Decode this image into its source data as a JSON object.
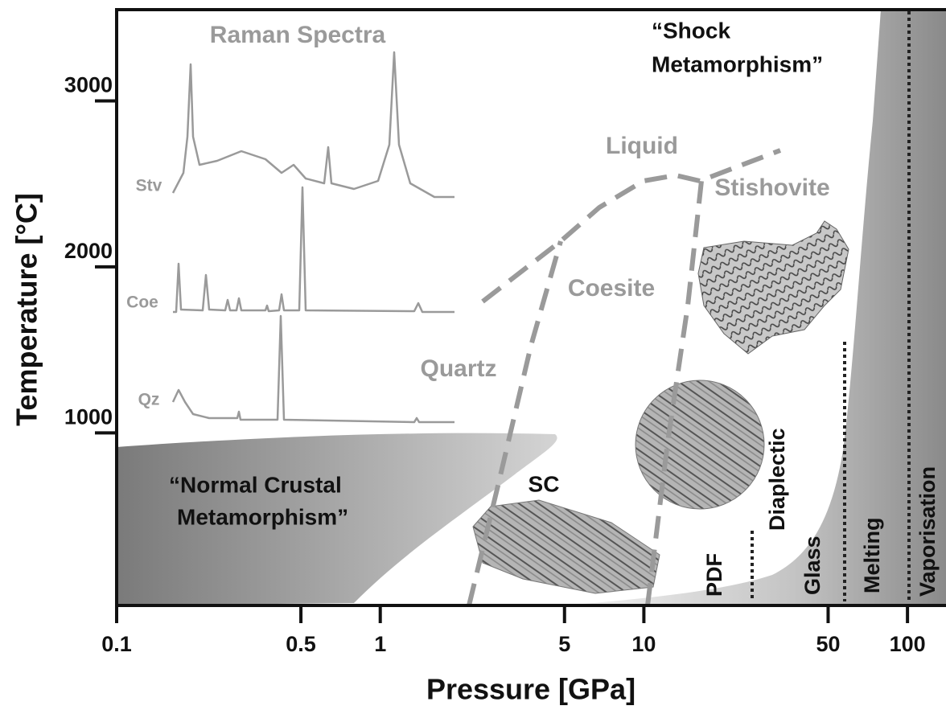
{
  "chart_data": {
    "type": "phase-diagram",
    "x_label": "Pressure [GPa]",
    "y_label": "Temperature [°C]",
    "xscale": "log",
    "xlim": [
      0.1,
      140
    ],
    "xticks": [
      0.1,
      0.5,
      1,
      5,
      10,
      50,
      100
    ],
    "ylim": [
      -40,
      3550
    ],
    "yticks": [
      1000,
      2000,
      3000
    ],
    "annotations": [
      "Raman Spectra",
      "Stv",
      "Coe",
      "Qz",
      "“Shock",
      "Metamorphism”",
      "Liquid",
      "Stishovite",
      "Coesite",
      "Quartz",
      "SC",
      "“Normal Crustal",
      "Metamorphism”",
      "PDF",
      "Diaplectic",
      "Glass",
      "Melting",
      "Vaporisation"
    ]
  }
}
